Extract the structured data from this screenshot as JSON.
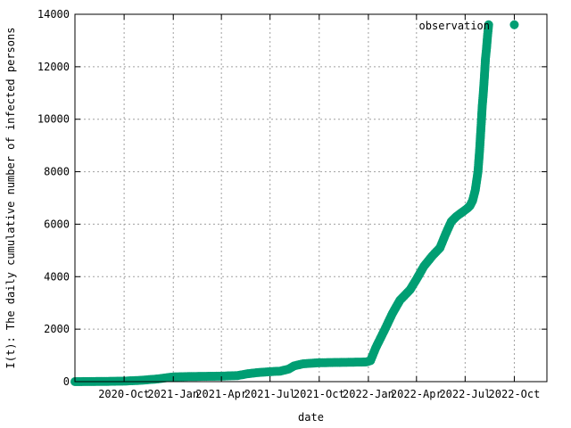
{
  "chart_data": {
    "type": "scatter",
    "title": "",
    "xlabel": "date",
    "ylabel": "I(t): The daily cumulative number of infected persons",
    "legend": {
      "label": "observation",
      "placement": "top-right"
    },
    "color": "#009e73",
    "grid": true,
    "xlim": [
      "2020-07-01",
      "2022-12-01"
    ],
    "ylim": [
      0,
      14000
    ],
    "x_ticks": [
      {
        "date": "2020-10-01",
        "label": "2020-Oct"
      },
      {
        "date": "2021-01-01",
        "label": "2021-Jan"
      },
      {
        "date": "2021-04-01",
        "label": "2021-Apr"
      },
      {
        "date": "2021-07-01",
        "label": "2021-Jul"
      },
      {
        "date": "2021-10-01",
        "label": "2021-Oct"
      },
      {
        "date": "2022-01-01",
        "label": "2022-Jan"
      },
      {
        "date": "2022-04-01",
        "label": "2022-Apr"
      },
      {
        "date": "2022-07-01",
        "label": "2022-Jul"
      },
      {
        "date": "2022-10-01",
        "label": "2022-Oct"
      }
    ],
    "y_ticks": [
      0,
      2000,
      4000,
      6000,
      8000,
      10000,
      12000,
      14000
    ],
    "series": [
      {
        "x": [
          "2020-07-01",
          "2020-08-01",
          "2020-09-01",
          "2020-10-01",
          "2020-11-01",
          "2020-12-01",
          "2021-01-01",
          "2021-02-01",
          "2021-03-01",
          "2021-04-01",
          "2021-05-01",
          "2021-05-20",
          "2021-06-10",
          "2021-07-01",
          "2021-07-20",
          "2021-08-05",
          "2021-08-15",
          "2021-09-01",
          "2021-10-01",
          "2021-11-01",
          "2021-12-01",
          "2021-12-20",
          "2021-12-28",
          "2022-01-05",
          "2022-01-15",
          "2022-02-01",
          "2022-02-15",
          "2022-03-01",
          "2022-03-20",
          "2022-04-01",
          "2022-04-15",
          "2022-05-01",
          "2022-05-15",
          "2022-05-25",
          "2022-06-05",
          "2022-06-15",
          "2022-06-25",
          "2022-07-05",
          "2022-07-10",
          "2022-07-15",
          "2022-07-20",
          "2022-07-25",
          "2022-07-28",
          "2022-07-31",
          "2022-08-02",
          "2022-08-04",
          "2022-08-06",
          "2022-08-08",
          "2022-08-10",
          "2022-08-12",
          "2022-08-14",
          "2022-10-01"
        ],
        "y": [
          0,
          5,
          10,
          20,
          50,
          100,
          180,
          195,
          200,
          210,
          230,
          300,
          350,
          380,
          400,
          480,
          600,
          680,
          720,
          730,
          740,
          745,
          750,
          800,
          1300,
          2000,
          2600,
          3100,
          3500,
          3900,
          4400,
          4800,
          5100,
          5600,
          6100,
          6300,
          6450,
          6600,
          6700,
          6900,
          7300,
          8000,
          8800,
          9800,
          10500,
          11000,
          11600,
          12300,
          12700,
          13200,
          13600,
          13600
        ]
      }
    ]
  }
}
